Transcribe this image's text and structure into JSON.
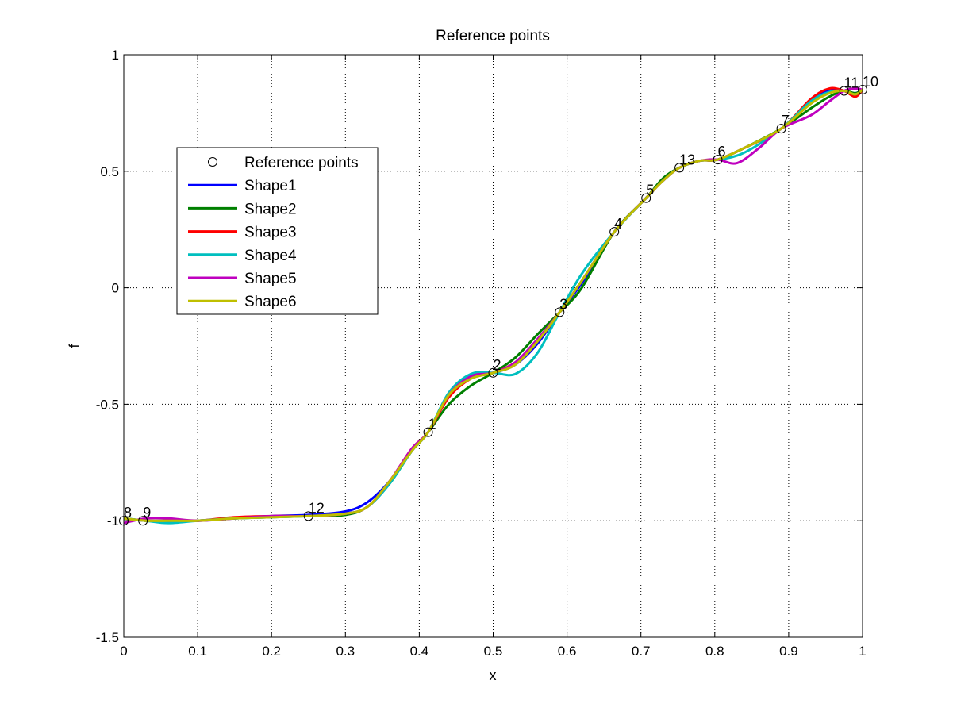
{
  "chart_data": {
    "type": "line",
    "title": "Reference points",
    "xlabel": "x",
    "ylabel": "f",
    "xlim": [
      0,
      1
    ],
    "ylim": [
      -1.5,
      1
    ],
    "xticks": [
      0,
      0.1,
      0.2,
      0.3,
      0.4,
      0.5,
      0.6,
      0.7,
      0.8,
      0.9,
      1
    ],
    "xtick_labels": [
      "0",
      "0.1",
      "0.2",
      "0.3",
      "0.4",
      "0.5",
      "0.6",
      "0.7",
      "0.8",
      "0.9",
      "1"
    ],
    "yticks": [
      1,
      0.5,
      0,
      -0.5,
      -1,
      -1.5
    ],
    "ytick_labels": [
      "1",
      "0.5",
      "0",
      "-0.5",
      "-1",
      "-1.5"
    ],
    "grid": true,
    "legend_position": "upper-left",
    "reference_points": {
      "name": "Reference points",
      "marker": "open-circle",
      "points": [
        {
          "label": "1",
          "x": 0.412,
          "y": -0.62
        },
        {
          "label": "2",
          "x": 0.5,
          "y": -0.365
        },
        {
          "label": "3",
          "x": 0.59,
          "y": -0.105
        },
        {
          "label": "4",
          "x": 0.664,
          "y": 0.24
        },
        {
          "label": "5",
          "x": 0.707,
          "y": 0.385
        },
        {
          "label": "6",
          "x": 0.804,
          "y": 0.55
        },
        {
          "label": "7",
          "x": 0.89,
          "y": 0.683
        },
        {
          "label": "8",
          "x": 0.0,
          "y": -1.0
        },
        {
          "label": "9",
          "x": 0.026,
          "y": -1.0
        },
        {
          "label": "10",
          "x": 1.0,
          "y": 0.85
        },
        {
          "label": "11",
          "x": 0.975,
          "y": 0.845
        },
        {
          "label": "12",
          "x": 0.25,
          "y": -0.98
        },
        {
          "label": "13",
          "x": 0.752,
          "y": 0.515
        }
      ]
    },
    "series": [
      {
        "name": "Shape1",
        "color": "#0000ff",
        "x": [
          0,
          0.03,
          0.06,
          0.1,
          0.15,
          0.2,
          0.25,
          0.3,
          0.33,
          0.36,
          0.39,
          0.412,
          0.44,
          0.47,
          0.5,
          0.53,
          0.56,
          0.59,
          0.62,
          0.664,
          0.707,
          0.73,
          0.752,
          0.78,
          0.804,
          0.84,
          0.89,
          0.93,
          0.955,
          0.975,
          0.99,
          1
        ],
        "y": [
          -0.99,
          -1.0,
          -1.0,
          -1.0,
          -0.99,
          -0.98,
          -0.975,
          -0.96,
          -0.92,
          -0.83,
          -0.7,
          -0.62,
          -0.46,
          -0.38,
          -0.365,
          -0.33,
          -0.24,
          -0.105,
          0.02,
          0.24,
          0.385,
          0.46,
          0.515,
          0.545,
          0.55,
          0.6,
          0.683,
          0.8,
          0.85,
          0.845,
          0.835,
          0.85
        ]
      },
      {
        "name": "Shape2",
        "color": "#008000",
        "x": [
          0,
          0.03,
          0.06,
          0.1,
          0.15,
          0.2,
          0.25,
          0.3,
          0.33,
          0.36,
          0.39,
          0.412,
          0.44,
          0.47,
          0.5,
          0.53,
          0.56,
          0.59,
          0.62,
          0.664,
          0.707,
          0.73,
          0.752,
          0.78,
          0.804,
          0.84,
          0.89,
          0.93,
          0.955,
          0.975,
          0.99,
          1
        ],
        "y": [
          -0.99,
          -1.0,
          -1.0,
          -1.0,
          -0.99,
          -0.985,
          -0.98,
          -0.975,
          -0.94,
          -0.84,
          -0.7,
          -0.62,
          -0.5,
          -0.42,
          -0.365,
          -0.3,
          -0.2,
          -0.105,
          0.0,
          0.24,
          0.385,
          0.47,
          0.515,
          0.545,
          0.55,
          0.6,
          0.683,
          0.77,
          0.82,
          0.845,
          0.835,
          0.85
        ]
      },
      {
        "name": "Shape3",
        "color": "#ff0000",
        "x": [
          0,
          0.03,
          0.06,
          0.1,
          0.15,
          0.2,
          0.25,
          0.3,
          0.33,
          0.36,
          0.39,
          0.412,
          0.44,
          0.47,
          0.5,
          0.53,
          0.56,
          0.59,
          0.62,
          0.664,
          0.707,
          0.73,
          0.752,
          0.78,
          0.804,
          0.84,
          0.89,
          0.93,
          0.955,
          0.975,
          0.99,
          1
        ],
        "y": [
          -0.99,
          -1.0,
          -1.0,
          -1.0,
          -0.985,
          -0.98,
          -0.98,
          -0.97,
          -0.94,
          -0.83,
          -0.69,
          -0.62,
          -0.47,
          -0.39,
          -0.365,
          -0.32,
          -0.23,
          -0.105,
          0.03,
          0.24,
          0.385,
          0.46,
          0.515,
          0.545,
          0.55,
          0.6,
          0.683,
          0.81,
          0.855,
          0.845,
          0.82,
          0.85
        ]
      },
      {
        "name": "Shape4",
        "color": "#00bfbf",
        "x": [
          0,
          0.03,
          0.06,
          0.1,
          0.15,
          0.2,
          0.25,
          0.3,
          0.33,
          0.36,
          0.39,
          0.412,
          0.44,
          0.47,
          0.5,
          0.53,
          0.56,
          0.59,
          0.62,
          0.664,
          0.707,
          0.73,
          0.752,
          0.78,
          0.804,
          0.84,
          0.89,
          0.93,
          0.955,
          0.975,
          0.99,
          1
        ],
        "y": [
          -0.99,
          -1.0,
          -1.01,
          -1.0,
          -0.99,
          -0.985,
          -0.98,
          -0.97,
          -0.94,
          -0.84,
          -0.7,
          -0.62,
          -0.45,
          -0.37,
          -0.365,
          -0.37,
          -0.28,
          -0.105,
          0.06,
          0.24,
          0.385,
          0.46,
          0.515,
          0.545,
          0.55,
          0.58,
          0.683,
          0.8,
          0.84,
          0.845,
          0.83,
          0.85
        ]
      },
      {
        "name": "Shape5",
        "color": "#bf00bf",
        "x": [
          0,
          0.03,
          0.06,
          0.1,
          0.15,
          0.2,
          0.25,
          0.3,
          0.33,
          0.36,
          0.39,
          0.412,
          0.44,
          0.47,
          0.5,
          0.53,
          0.56,
          0.59,
          0.62,
          0.664,
          0.707,
          0.73,
          0.752,
          0.78,
          0.804,
          0.83,
          0.86,
          0.89,
          0.93,
          0.955,
          0.975,
          0.99,
          1
        ],
        "y": [
          -1.01,
          -0.99,
          -0.99,
          -1.0,
          -0.99,
          -0.98,
          -0.98,
          -0.97,
          -0.94,
          -0.83,
          -0.69,
          -0.62,
          -0.46,
          -0.38,
          -0.365,
          -0.32,
          -0.22,
          -0.105,
          0.03,
          0.24,
          0.385,
          0.46,
          0.515,
          0.545,
          0.55,
          0.535,
          0.6,
          0.683,
          0.74,
          0.8,
          0.845,
          0.855,
          0.85
        ]
      },
      {
        "name": "Shape6",
        "color": "#bfbf00",
        "x": [
          0,
          0.03,
          0.06,
          0.1,
          0.15,
          0.2,
          0.25,
          0.3,
          0.33,
          0.36,
          0.39,
          0.412,
          0.44,
          0.47,
          0.5,
          0.53,
          0.56,
          0.59,
          0.62,
          0.664,
          0.707,
          0.73,
          0.752,
          0.78,
          0.804,
          0.84,
          0.89,
          0.93,
          0.955,
          0.975,
          0.99,
          1
        ],
        "y": [
          -0.99,
          -1.0,
          -1.0,
          -1.0,
          -0.99,
          -0.985,
          -0.98,
          -0.97,
          -0.94,
          -0.83,
          -0.7,
          -0.62,
          -0.46,
          -0.39,
          -0.365,
          -0.33,
          -0.23,
          -0.105,
          0.03,
          0.24,
          0.385,
          0.46,
          0.515,
          0.545,
          0.55,
          0.6,
          0.683,
          0.79,
          0.835,
          0.845,
          0.83,
          0.85
        ]
      }
    ]
  }
}
